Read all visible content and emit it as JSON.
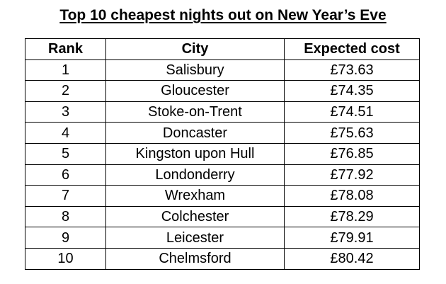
{
  "title": "Top 10 cheapest nights out on New Year’s Eve",
  "table": {
    "headers": [
      "Rank",
      "City",
      "Expected cost"
    ],
    "rows": [
      {
        "rank": "1",
        "city": "Salisbury",
        "cost": "£73.63"
      },
      {
        "rank": "2",
        "city": "Gloucester",
        "cost": "£74.35"
      },
      {
        "rank": "3",
        "city": "Stoke-on-Trent",
        "cost": "£74.51"
      },
      {
        "rank": "4",
        "city": "Doncaster",
        "cost": "£75.63"
      },
      {
        "rank": "5",
        "city": "Kingston upon Hull",
        "cost": "£76.85"
      },
      {
        "rank": "6",
        "city": "Londonderry",
        "cost": "£77.92"
      },
      {
        "rank": "7",
        "city": "Wrexham",
        "cost": "£78.08"
      },
      {
        "rank": "8",
        "city": "Colchester",
        "cost": "£78.29"
      },
      {
        "rank": "9",
        "city": "Leicester",
        "cost": "£79.91"
      },
      {
        "rank": "10",
        "city": "Chelmsford",
        "cost": "£80.42"
      }
    ]
  }
}
